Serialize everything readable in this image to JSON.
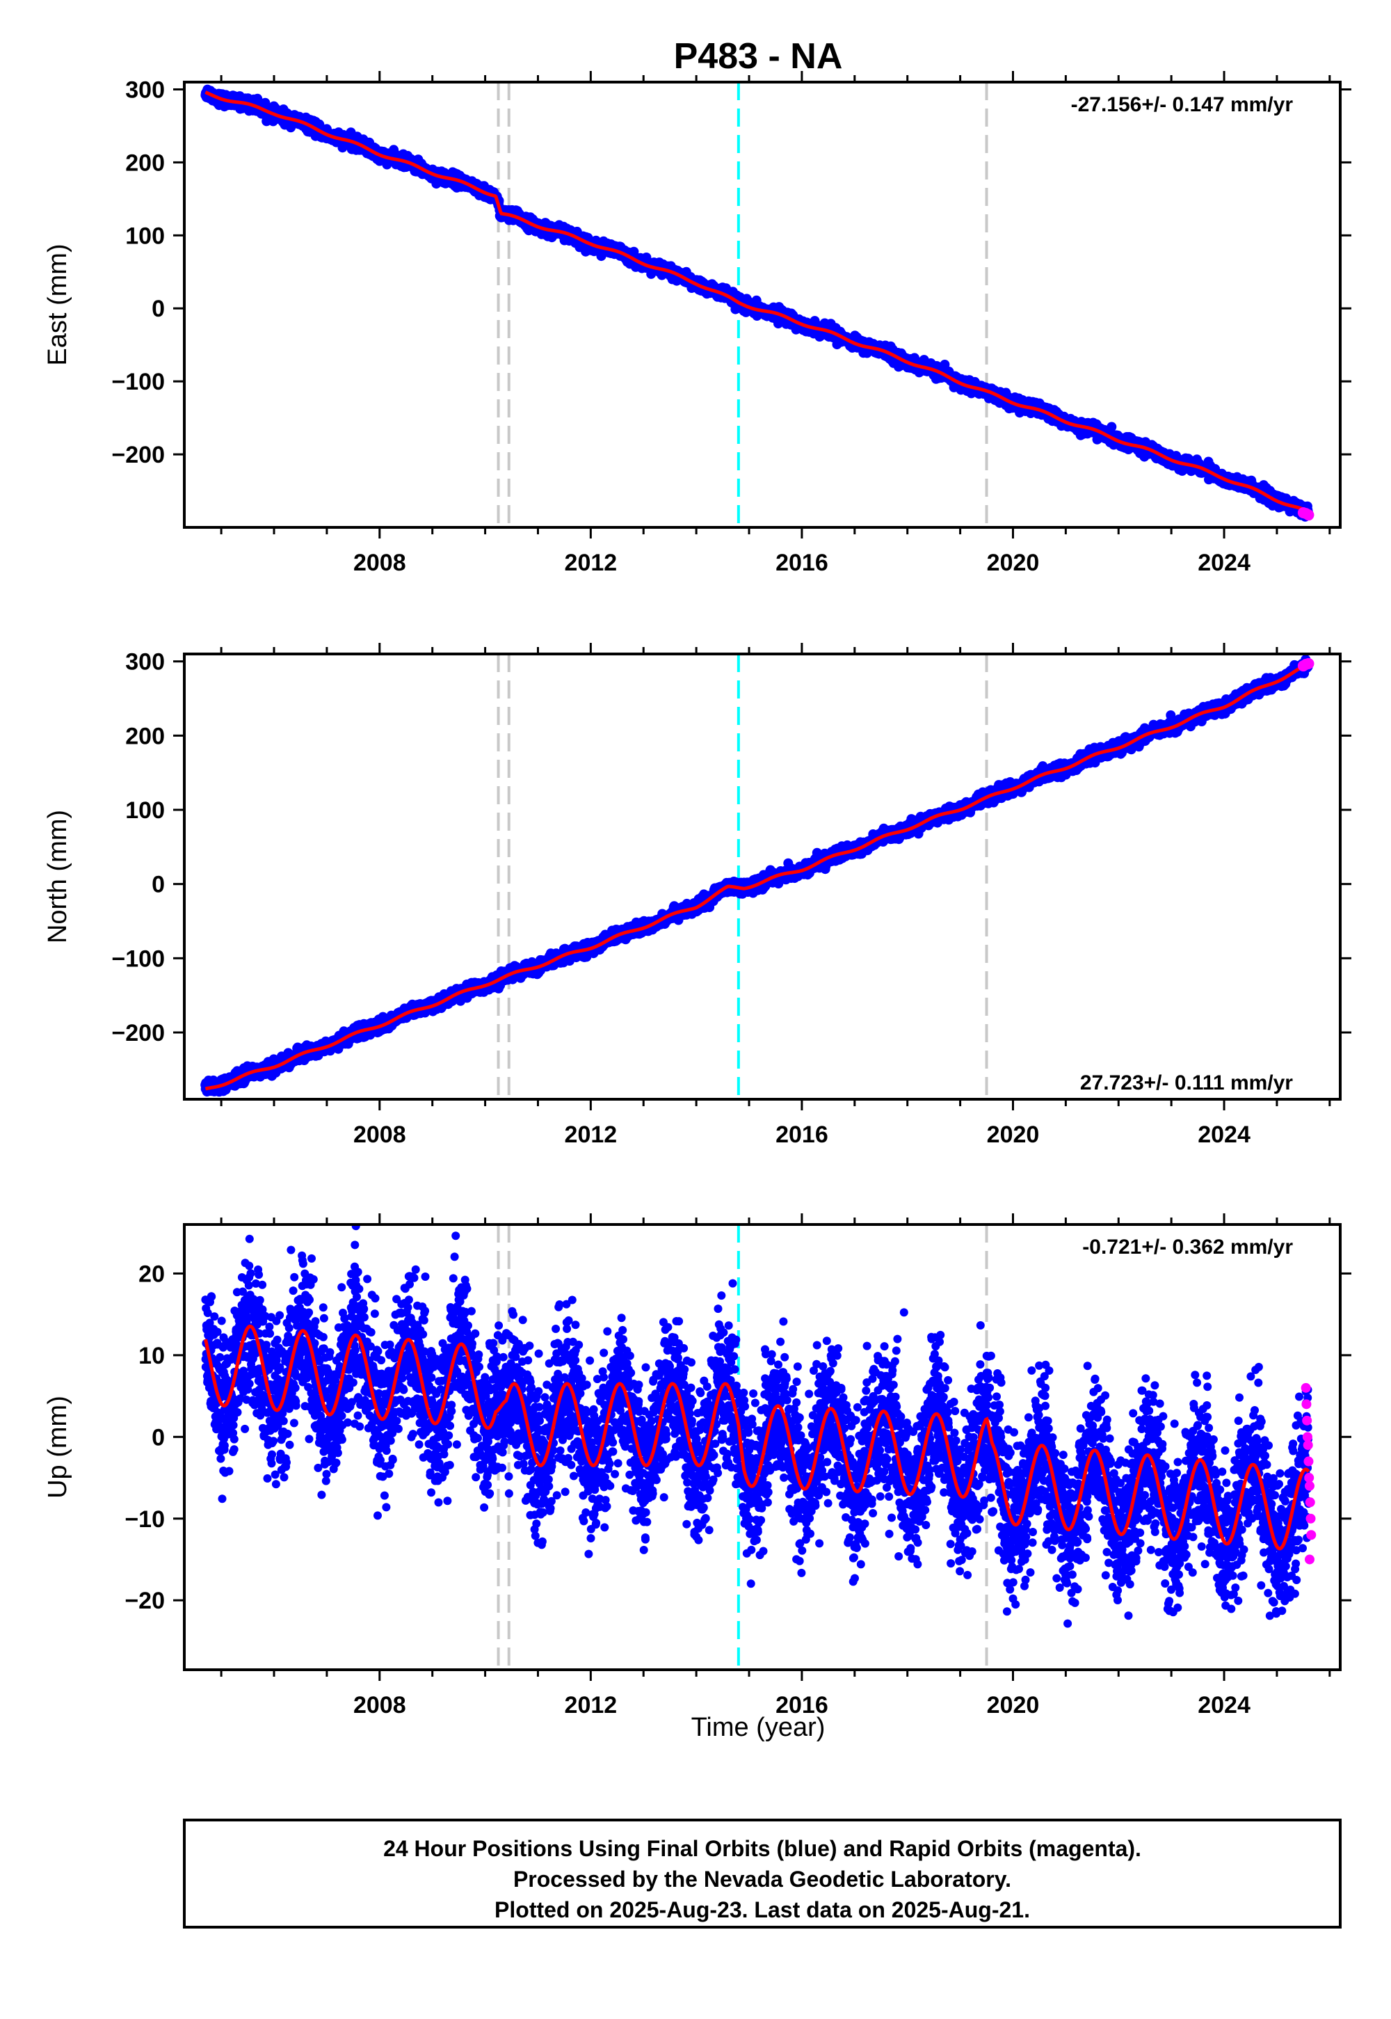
{
  "title": "P483 - NA",
  "xlabel": "Time (year)",
  "colors": {
    "final_orbits": "#0000ff",
    "rapid_orbits": "#ff00ff",
    "model": "#ff0000",
    "equipment_change": "#c8c8c8",
    "earthquake": "#00ffff"
  },
  "chart_data": [
    {
      "type": "scatter",
      "name": "east",
      "ylabel": "East (mm)",
      "rate_label": "-27.156+/- 0.147 mm/yr",
      "rate_position": "top-right",
      "xlim": [
        2004.3,
        2026.2
      ],
      "ylim": [
        -300,
        310
      ],
      "xticks": [
        2008,
        2012,
        2016,
        2020,
        2024
      ],
      "xtick_labels": [
        "2008",
        "2012",
        "2016",
        "2020",
        "2024"
      ],
      "yticks": [
        -200,
        -100,
        0,
        100,
        200,
        300
      ],
      "ytick_labels": [
        "−200",
        "−100",
        "0",
        "100",
        "200",
        "300"
      ],
      "data_range": [
        2004.7,
        2025.6
      ],
      "trend_points": [
        [
          2004.7,
          295
        ],
        [
          2006.0,
          268
        ],
        [
          2008.0,
          212
        ],
        [
          2010.2,
          155
        ],
        [
          2010.3,
          130
        ],
        [
          2012.0,
          90
        ],
        [
          2014.0,
          35
        ],
        [
          2014.8,
          8
        ],
        [
          2016.0,
          -20
        ],
        [
          2018.0,
          -72
        ],
        [
          2019.5,
          -115
        ],
        [
          2020.0,
          -128
        ],
        [
          2022.0,
          -180
        ],
        [
          2024.0,
          -232
        ],
        [
          2025.6,
          -280
        ]
      ],
      "annual_amplitude": 2,
      "scatter_noise": 4,
      "rapid_points": [
        [
          2025.5,
          -280
        ],
        [
          2025.55,
          -281
        ],
        [
          2025.6,
          -283
        ]
      ]
    },
    {
      "type": "scatter",
      "name": "north",
      "ylabel": "North (mm)",
      "rate_label": "27.723+/- 0.111 mm/yr",
      "rate_position": "bottom-right",
      "xlim": [
        2004.3,
        2026.2
      ],
      "ylim": [
        -290,
        310
      ],
      "xticks": [
        2008,
        2012,
        2016,
        2020,
        2024
      ],
      "xtick_labels": [
        "2008",
        "2012",
        "2016",
        "2020",
        "2024"
      ],
      "yticks": [
        -200,
        -100,
        0,
        100,
        200,
        300
      ],
      "ytick_labels": [
        "−200",
        "−100",
        "0",
        "100",
        "200",
        "300"
      ],
      "data_range": [
        2004.7,
        2025.6
      ],
      "trend_points": [
        [
          2004.7,
          -277
        ],
        [
          2006.0,
          -245
        ],
        [
          2008.0,
          -190
        ],
        [
          2010.0,
          -135
        ],
        [
          2012.0,
          -85
        ],
        [
          2014.0,
          -30
        ],
        [
          2014.6,
          -5
        ],
        [
          2014.9,
          -5
        ],
        [
          2016.0,
          20
        ],
        [
          2018.0,
          75
        ],
        [
          2019.5,
          115
        ],
        [
          2020.0,
          130
        ],
        [
          2022.0,
          185
        ],
        [
          2024.0,
          240
        ],
        [
          2025.6,
          295
        ]
      ],
      "annual_amplitude": 2,
      "scatter_noise": 4,
      "rapid_points": [
        [
          2025.5,
          294
        ],
        [
          2025.55,
          296
        ],
        [
          2025.6,
          297
        ]
      ]
    },
    {
      "type": "scatter",
      "name": "up",
      "ylabel": "Up (mm)",
      "rate_label": "-0.721+/- 0.362 mm/yr",
      "rate_position": "top-right",
      "xlim": [
        2004.3,
        2026.2
      ],
      "ylim": [
        -28.5,
        26
      ],
      "xticks": [
        2008,
        2012,
        2016,
        2020,
        2024
      ],
      "xtick_labels": [
        "2008",
        "2012",
        "2016",
        "2020",
        "2024"
      ],
      "yticks": [
        -20,
        -10,
        0,
        10,
        20
      ],
      "ytick_labels": [
        "−20",
        "−10",
        "0",
        "10",
        "20"
      ],
      "data_range": [
        2004.7,
        2025.6
      ],
      "trend_points": [
        [
          2004.7,
          9
        ],
        [
          2010.2,
          6
        ],
        [
          2010.4,
          1.5
        ],
        [
          2014.8,
          1.5
        ],
        [
          2014.9,
          -1
        ],
        [
          2019.5,
          -2.5
        ],
        [
          2019.6,
          -5.5
        ],
        [
          2025.6,
          -9
        ]
      ],
      "annual_amplitude": 5,
      "scatter_noise": 4.5,
      "rapid_points": [
        [
          2025.55,
          6
        ],
        [
          2025.56,
          4
        ],
        [
          2025.57,
          2
        ],
        [
          2025.58,
          0
        ],
        [
          2025.59,
          -1
        ],
        [
          2025.6,
          -3
        ],
        [
          2025.61,
          -5
        ],
        [
          2025.62,
          -6
        ],
        [
          2025.63,
          -8
        ],
        [
          2025.64,
          -10
        ],
        [
          2025.65,
          -12
        ],
        [
          2025.62,
          -15
        ]
      ]
    }
  ],
  "vertical_lines": {
    "equipment": [
      2010.25,
      2010.45,
      2019.5
    ],
    "earthquake": [
      2014.8
    ]
  },
  "footer": {
    "line1": "24 Hour Positions Using Final Orbits (blue) and Rapid Orbits (magenta).",
    "line2": "Processed by the Nevada Geodetic Laboratory.",
    "line3": "Plotted on 2025-Aug-23. Last data on 2025-Aug-21."
  }
}
